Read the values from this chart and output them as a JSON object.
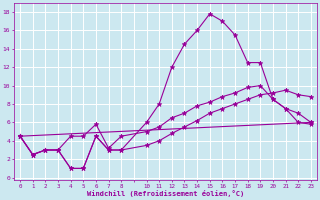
{
  "xlabel": "Windchill (Refroidissement éolien,°C)",
  "bg_color": "#cce8f0",
  "line_color": "#990099",
  "grid_color": "#ffffff",
  "ylim": [
    -0.3,
    19.0
  ],
  "yticks": [
    0,
    2,
    4,
    6,
    8,
    10,
    12,
    14,
    16,
    18
  ],
  "xtick_labels": [
    "0",
    "1",
    "2",
    "3",
    "4",
    "5",
    "6",
    "7",
    "8",
    "",
    "10",
    "11",
    "12",
    "13",
    "14",
    "15",
    "16",
    "17",
    "18",
    "19",
    "20",
    "21",
    "22",
    "23"
  ],
  "lines": [
    {
      "x": [
        0,
        1,
        2,
        3,
        4,
        5,
        6,
        7,
        8,
        10,
        11,
        12,
        13,
        14,
        15,
        16,
        17,
        18,
        19,
        20,
        21,
        22,
        23
      ],
      "y": [
        4.5,
        2.5,
        3.0,
        3.0,
        1.0,
        1.0,
        4.5,
        3.0,
        3.0,
        6.0,
        8.0,
        12.0,
        14.5,
        16.0,
        17.8,
        17.0,
        15.5,
        12.5,
        12.5,
        8.5,
        7.5,
        6.0,
        5.8
      ]
    },
    {
      "x": [
        0,
        1,
        2,
        3,
        4,
        5,
        6,
        7,
        8,
        10,
        11,
        12,
        13,
        14,
        15,
        16,
        17,
        18,
        19,
        20,
        21,
        22,
        23
      ],
      "y": [
        4.5,
        2.5,
        3.0,
        3.0,
        4.5,
        4.5,
        5.8,
        3.2,
        4.5,
        5.0,
        5.5,
        6.5,
        7.0,
        7.8,
        8.2,
        8.8,
        9.2,
        9.8,
        10.0,
        8.5,
        7.5,
        7.0,
        6.0
      ]
    },
    {
      "x": [
        0,
        1,
        2,
        3,
        4,
        5,
        6,
        7,
        8,
        10,
        11,
        12,
        13,
        14,
        15,
        16,
        17,
        18,
        19,
        20,
        21,
        22,
        23
      ],
      "y": [
        4.5,
        2.5,
        3.0,
        3.0,
        1.0,
        1.0,
        4.5,
        3.0,
        3.0,
        3.5,
        4.0,
        4.8,
        5.5,
        6.2,
        7.0,
        7.5,
        8.0,
        8.5,
        9.0,
        9.2,
        9.5,
        9.0,
        8.8
      ]
    },
    {
      "x": [
        0,
        23
      ],
      "y": [
        4.5,
        6.0
      ]
    }
  ]
}
